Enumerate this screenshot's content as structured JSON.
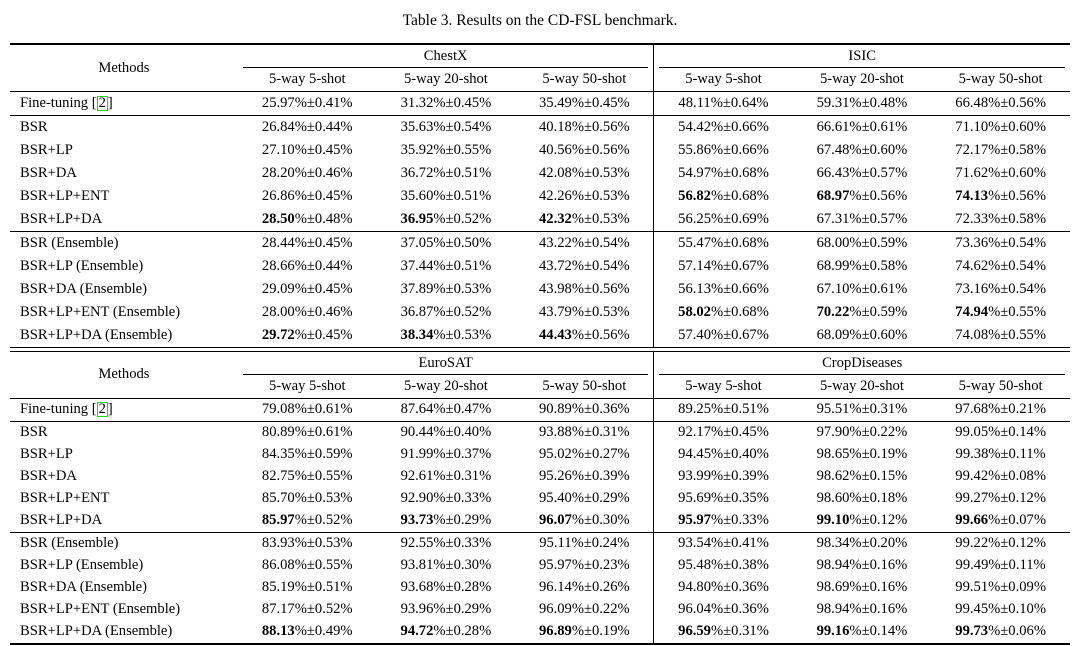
{
  "caption": "Table 3. Results on the CD-FSL benchmark.",
  "labels": {
    "methods": "Methods",
    "shots": [
      "5-way 5-shot",
      "5-way 20-shot",
      "5-way 50-shot"
    ]
  },
  "colors": {
    "citation_box": "#16dd16",
    "rule": "#000000",
    "text": "#000000",
    "background": "#ffffff"
  },
  "value_format": "{value}%±{error}%",
  "tables": [
    {
      "datasets": [
        "ChestX",
        "ISIC"
      ],
      "rows": [
        {
          "method": "Fine-tuning",
          "cite": "2",
          "section": "baseline",
          "cells": [
            [
              "25.97",
              "0.41",
              0
            ],
            [
              "31.32",
              "0.45",
              0
            ],
            [
              "35.49",
              "0.45",
              0
            ],
            [
              "48.11",
              "0.64",
              0
            ],
            [
              "59.31",
              "0.48",
              0
            ],
            [
              "66.48",
              "0.56",
              0
            ]
          ]
        },
        {
          "method": "BSR",
          "section": "single",
          "cells": [
            [
              "26.84",
              "0.44",
              0
            ],
            [
              "35.63",
              "0.54",
              0
            ],
            [
              "40.18",
              "0.56",
              0
            ],
            [
              "54.42",
              "0.66",
              0
            ],
            [
              "66.61",
              "0.61",
              0
            ],
            [
              "71.10",
              "0.60",
              0
            ]
          ]
        },
        {
          "method": "BSR+LP",
          "section": "single",
          "cells": [
            [
              "27.10",
              "0.45",
              0
            ],
            [
              "35.92",
              "0.55",
              0
            ],
            [
              "40.56",
              "0.56",
              0
            ],
            [
              "55.86",
              "0.66",
              0
            ],
            [
              "67.48",
              "0.60",
              0
            ],
            [
              "72.17",
              "0.58",
              0
            ]
          ]
        },
        {
          "method": "BSR+DA",
          "section": "single",
          "cells": [
            [
              "28.20",
              "0.46",
              0
            ],
            [
              "36.72",
              "0.51",
              0
            ],
            [
              "42.08",
              "0.53",
              0
            ],
            [
              "54.97",
              "0.68",
              0
            ],
            [
              "66.43",
              "0.57",
              0
            ],
            [
              "71.62",
              "0.60",
              0
            ]
          ]
        },
        {
          "method": "BSR+LP+ENT",
          "section": "single",
          "cells": [
            [
              "26.86",
              "0.45",
              0
            ],
            [
              "35.60",
              "0.51",
              0
            ],
            [
              "42.26",
              "0.53",
              0
            ],
            [
              "56.82",
              "0.68",
              1
            ],
            [
              "68.97",
              "0.56",
              1
            ],
            [
              "74.13",
              "0.56",
              1
            ]
          ]
        },
        {
          "method": "BSR+LP+DA",
          "section": "single",
          "cells": [
            [
              "28.50",
              "0.48",
              1
            ],
            [
              "36.95",
              "0.52",
              1
            ],
            [
              "42.32",
              "0.53",
              1
            ],
            [
              "56.25",
              "0.69",
              0
            ],
            [
              "67.31",
              "0.57",
              0
            ],
            [
              "72.33",
              "0.58",
              0
            ]
          ]
        },
        {
          "method": "BSR (Ensemble)",
          "section": "ensemble",
          "cells": [
            [
              "28.44",
              "0.45",
              0
            ],
            [
              "37.05",
              "0.50",
              0
            ],
            [
              "43.22",
              "0.54",
              0
            ],
            [
              "55.47",
              "0.68",
              0
            ],
            [
              "68.00",
              "0.59",
              0
            ],
            [
              "73.36",
              "0.54",
              0
            ]
          ]
        },
        {
          "method": "BSR+LP (Ensemble)",
          "section": "ensemble",
          "cells": [
            [
              "28.66",
              "0.44",
              0
            ],
            [
              "37.44",
              "0.51",
              0
            ],
            [
              "43.72",
              "0.54",
              0
            ],
            [
              "57.14",
              "0.67",
              0
            ],
            [
              "68.99",
              "0.58",
              0
            ],
            [
              "74.62",
              "0.54",
              0
            ]
          ]
        },
        {
          "method": "BSR+DA (Ensemble)",
          "section": "ensemble",
          "cells": [
            [
              "29.09",
              "0.45",
              0
            ],
            [
              "37.89",
              "0.53",
              0
            ],
            [
              "43.98",
              "0.56",
              0
            ],
            [
              "56.13",
              "0.66",
              0
            ],
            [
              "67.10",
              "0.61",
              0
            ],
            [
              "73.16",
              "0.54",
              0
            ]
          ]
        },
        {
          "method": "BSR+LP+ENT (Ensemble)",
          "section": "ensemble",
          "cells": [
            [
              "28.00",
              "0.46",
              0
            ],
            [
              "36.87",
              "0.52",
              0
            ],
            [
              "43.79",
              "0.53",
              0
            ],
            [
              "58.02",
              "0.68",
              1
            ],
            [
              "70.22",
              "0.59",
              1
            ],
            [
              "74.94",
              "0.55",
              1
            ]
          ]
        },
        {
          "method": "BSR+LP+DA (Ensemble)",
          "section": "ensemble",
          "cells": [
            [
              "29.72",
              "0.45",
              1
            ],
            [
              "38.34",
              "0.53",
              1
            ],
            [
              "44.43",
              "0.56",
              1
            ],
            [
              "57.40",
              "0.67",
              0
            ],
            [
              "68.09",
              "0.60",
              0
            ],
            [
              "74.08",
              "0.55",
              0
            ]
          ]
        }
      ]
    },
    {
      "datasets": [
        "EuroSAT",
        "CropDiseases"
      ],
      "rows": [
        {
          "method": "Fine-tuning",
          "cite": "2",
          "section": "baseline",
          "cells": [
            [
              "79.08",
              "0.61",
              0
            ],
            [
              "87.64",
              "0.47",
              0
            ],
            [
              "90.89",
              "0.36",
              0
            ],
            [
              "89.25",
              "0.51",
              0
            ],
            [
              "95.51",
              "0.31",
              0
            ],
            [
              "97.68",
              "0.21",
              0
            ]
          ]
        },
        {
          "method": "BSR",
          "section": "single",
          "cells": [
            [
              "80.89",
              "0.61",
              0
            ],
            [
              "90.44",
              "0.40",
              0
            ],
            [
              "93.88",
              "0.31",
              0
            ],
            [
              "92.17",
              "0.45",
              0
            ],
            [
              "97.90",
              "0.22",
              0
            ],
            [
              "99.05",
              "0.14",
              0
            ]
          ]
        },
        {
          "method": "BSR+LP",
          "section": "single",
          "cells": [
            [
              "84.35",
              "0.59",
              0
            ],
            [
              "91.99",
              "0.37",
              0
            ],
            [
              "95.02",
              "0.27",
              0
            ],
            [
              "94.45",
              "0.40",
              0
            ],
            [
              "98.65",
              "0.19",
              0
            ],
            [
              "99.38",
              "0.11",
              0
            ]
          ]
        },
        {
          "method": "BSR+DA",
          "section": "single",
          "cells": [
            [
              "82.75",
              "0.55",
              0
            ],
            [
              "92.61",
              "0.31",
              0
            ],
            [
              "95.26",
              "0.39",
              0
            ],
            [
              "93.99",
              "0.39",
              0
            ],
            [
              "98.62",
              "0.15",
              0
            ],
            [
              "99.42",
              "0.08",
              0
            ]
          ]
        },
        {
          "method": "BSR+LP+ENT",
          "section": "single",
          "cells": [
            [
              "85.70",
              "0.53",
              0
            ],
            [
              "92.90",
              "0.33",
              0
            ],
            [
              "95.40",
              "0.29",
              0
            ],
            [
              "95.69",
              "0.35",
              0
            ],
            [
              "98.60",
              "0.18",
              0
            ],
            [
              "99.27",
              "0.12",
              0
            ]
          ]
        },
        {
          "method": "BSR+LP+DA",
          "section": "single",
          "cells": [
            [
              "85.97",
              "0.52",
              1
            ],
            [
              "93.73",
              "0.29",
              1
            ],
            [
              "96.07",
              "0.30",
              1
            ],
            [
              "95.97",
              "0.33",
              1
            ],
            [
              "99.10",
              "0.12",
              1
            ],
            [
              "99.66",
              "0.07",
              1
            ]
          ]
        },
        {
          "method": "BSR (Ensemble)",
          "section": "ensemble",
          "cells": [
            [
              "83.93",
              "0.53",
              0
            ],
            [
              "92.55",
              "0.33",
              0
            ],
            [
              "95.11",
              "0.24",
              0
            ],
            [
              "93.54",
              "0.41",
              0
            ],
            [
              "98.34",
              "0.20",
              0
            ],
            [
              "99.22",
              "0.12",
              0
            ]
          ]
        },
        {
          "method": "BSR+LP (Ensemble)",
          "section": "ensemble",
          "cells": [
            [
              "86.08",
              "0.55",
              0
            ],
            [
              "93.81",
              "0.30",
              0
            ],
            [
              "95.97",
              "0.23",
              0
            ],
            [
              "95.48",
              "0.38",
              0
            ],
            [
              "98.94",
              "0.16",
              0
            ],
            [
              "99.49",
              "0.11",
              0
            ]
          ]
        },
        {
          "method": "BSR+DA (Ensemble)",
          "section": "ensemble",
          "cells": [
            [
              "85.19",
              "0.51",
              0
            ],
            [
              "93.68",
              "0.28",
              0
            ],
            [
              "96.14",
              "0.26",
              0
            ],
            [
              "94.80",
              "0.36",
              0
            ],
            [
              "98.69",
              "0.16",
              0
            ],
            [
              "99.51",
              "0.09",
              0
            ]
          ]
        },
        {
          "method": "BSR+LP+ENT (Ensemble)",
          "section": "ensemble",
          "cells": [
            [
              "87.17",
              "0.52",
              0
            ],
            [
              "93.96",
              "0.29",
              0
            ],
            [
              "96.09",
              "0.22",
              0
            ],
            [
              "96.04",
              "0.36",
              0
            ],
            [
              "98.94",
              "0.16",
              0
            ],
            [
              "99.45",
              "0.10",
              0
            ]
          ]
        },
        {
          "method": "BSR+LP+DA (Ensemble)",
          "section": "ensemble",
          "cells": [
            [
              "88.13",
              "0.49",
              1
            ],
            [
              "94.72",
              "0.28",
              1
            ],
            [
              "96.89",
              "0.19",
              1
            ],
            [
              "96.59",
              "0.31",
              1
            ],
            [
              "99.16",
              "0.14",
              1
            ],
            [
              "99.73",
              "0.06",
              1
            ]
          ]
        }
      ]
    }
  ]
}
